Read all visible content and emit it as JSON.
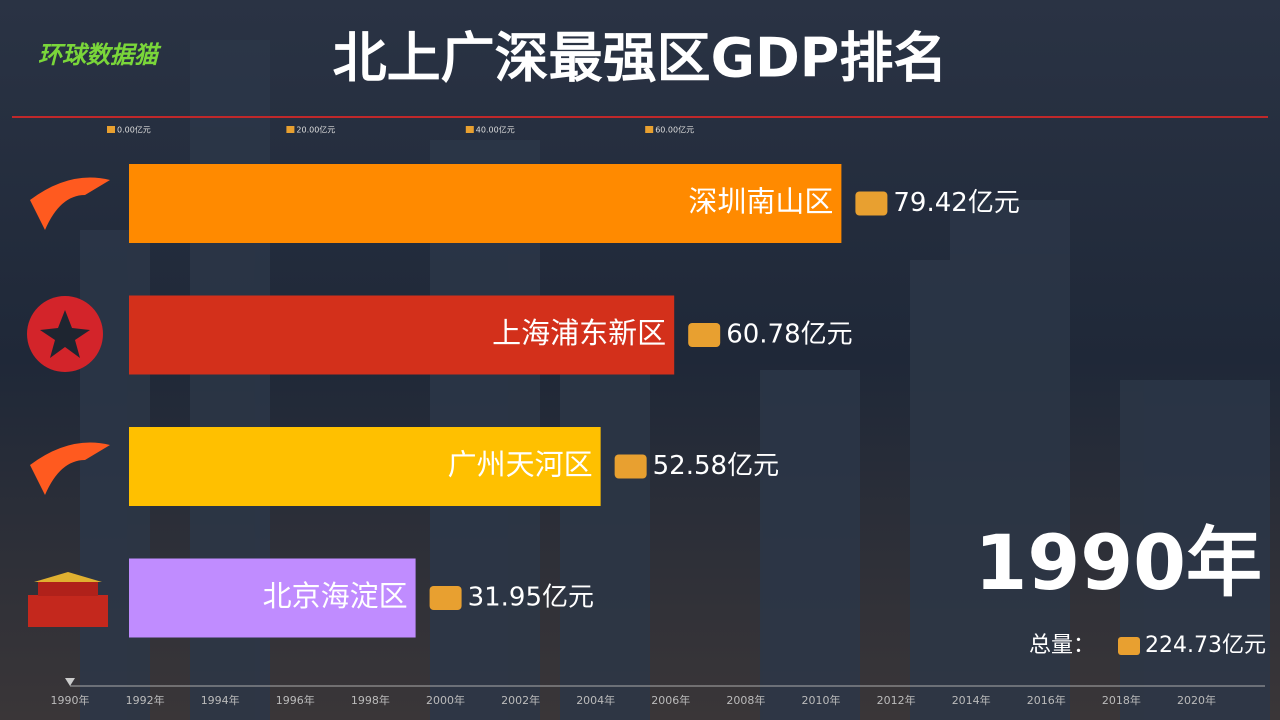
{
  "logo": "环球数据猫",
  "chart_data": {
    "type": "bar",
    "orientation": "horizontal",
    "title": "北上广深最强区GDP排名",
    "categories": [
      "深圳南山区",
      "上海浦东新区",
      "广州天河区",
      "北京海淀区"
    ],
    "values": [
      79.42,
      60.78,
      52.58,
      31.95
    ],
    "value_labels": [
      "79.42亿元",
      "60.78亿元",
      "52.58亿元",
      "31.95亿元"
    ],
    "colors": [
      "#ff8a00",
      "#d3301b",
      "#ffc000",
      "#c08cff"
    ],
    "xlim": [
      0,
      100
    ],
    "xticks": [
      {
        "value": 0,
        "label": "0.00亿元"
      },
      {
        "value": 20,
        "label": "20.00亿元"
      },
      {
        "value": 40,
        "label": "40.00亿元"
      },
      {
        "value": 60,
        "label": "60.00亿元"
      }
    ],
    "year": "1990年",
    "total_label": "总量：",
    "total": "224.73亿元",
    "timeline": [
      "1990年",
      "1992年",
      "1994年",
      "1996年",
      "1998年",
      "2000年",
      "2002年",
      "2004年",
      "2006年",
      "2008年",
      "2010年",
      "2012年",
      "2014年",
      "2016年",
      "2018年",
      "2020年"
    ]
  }
}
